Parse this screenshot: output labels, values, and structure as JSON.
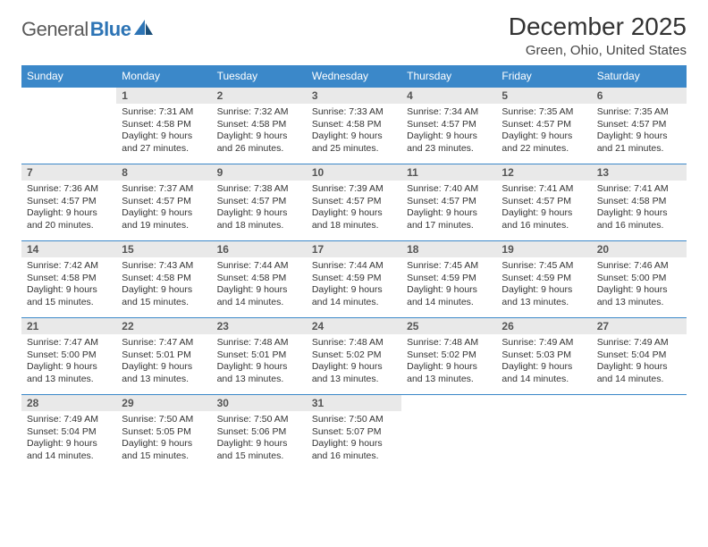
{
  "brand": {
    "part1": "General",
    "part2": "Blue"
  },
  "title": "December 2025",
  "location": "Green, Ohio, United States",
  "colors": {
    "header_bg": "#3b88c9",
    "header_text": "#ffffff",
    "daynum_bg": "#e9e9e9",
    "border": "#3b88c9",
    "logo_blue": "#2d74b5"
  },
  "weekdays": [
    "Sunday",
    "Monday",
    "Tuesday",
    "Wednesday",
    "Thursday",
    "Friday",
    "Saturday"
  ],
  "weeks": [
    [
      null,
      {
        "n": "1",
        "sr": "7:31 AM",
        "ss": "4:58 PM",
        "dl": "9 hours and 27 minutes."
      },
      {
        "n": "2",
        "sr": "7:32 AM",
        "ss": "4:58 PM",
        "dl": "9 hours and 26 minutes."
      },
      {
        "n": "3",
        "sr": "7:33 AM",
        "ss": "4:58 PM",
        "dl": "9 hours and 25 minutes."
      },
      {
        "n": "4",
        "sr": "7:34 AM",
        "ss": "4:57 PM",
        "dl": "9 hours and 23 minutes."
      },
      {
        "n": "5",
        "sr": "7:35 AM",
        "ss": "4:57 PM",
        "dl": "9 hours and 22 minutes."
      },
      {
        "n": "6",
        "sr": "7:35 AM",
        "ss": "4:57 PM",
        "dl": "9 hours and 21 minutes."
      }
    ],
    [
      {
        "n": "7",
        "sr": "7:36 AM",
        "ss": "4:57 PM",
        "dl": "9 hours and 20 minutes."
      },
      {
        "n": "8",
        "sr": "7:37 AM",
        "ss": "4:57 PM",
        "dl": "9 hours and 19 minutes."
      },
      {
        "n": "9",
        "sr": "7:38 AM",
        "ss": "4:57 PM",
        "dl": "9 hours and 18 minutes."
      },
      {
        "n": "10",
        "sr": "7:39 AM",
        "ss": "4:57 PM",
        "dl": "9 hours and 18 minutes."
      },
      {
        "n": "11",
        "sr": "7:40 AM",
        "ss": "4:57 PM",
        "dl": "9 hours and 17 minutes."
      },
      {
        "n": "12",
        "sr": "7:41 AM",
        "ss": "4:57 PM",
        "dl": "9 hours and 16 minutes."
      },
      {
        "n": "13",
        "sr": "7:41 AM",
        "ss": "4:58 PM",
        "dl": "9 hours and 16 minutes."
      }
    ],
    [
      {
        "n": "14",
        "sr": "7:42 AM",
        "ss": "4:58 PM",
        "dl": "9 hours and 15 minutes."
      },
      {
        "n": "15",
        "sr": "7:43 AM",
        "ss": "4:58 PM",
        "dl": "9 hours and 15 minutes."
      },
      {
        "n": "16",
        "sr": "7:44 AM",
        "ss": "4:58 PM",
        "dl": "9 hours and 14 minutes."
      },
      {
        "n": "17",
        "sr": "7:44 AM",
        "ss": "4:59 PM",
        "dl": "9 hours and 14 minutes."
      },
      {
        "n": "18",
        "sr": "7:45 AM",
        "ss": "4:59 PM",
        "dl": "9 hours and 14 minutes."
      },
      {
        "n": "19",
        "sr": "7:45 AM",
        "ss": "4:59 PM",
        "dl": "9 hours and 13 minutes."
      },
      {
        "n": "20",
        "sr": "7:46 AM",
        "ss": "5:00 PM",
        "dl": "9 hours and 13 minutes."
      }
    ],
    [
      {
        "n": "21",
        "sr": "7:47 AM",
        "ss": "5:00 PM",
        "dl": "9 hours and 13 minutes."
      },
      {
        "n": "22",
        "sr": "7:47 AM",
        "ss": "5:01 PM",
        "dl": "9 hours and 13 minutes."
      },
      {
        "n": "23",
        "sr": "7:48 AM",
        "ss": "5:01 PM",
        "dl": "9 hours and 13 minutes."
      },
      {
        "n": "24",
        "sr": "7:48 AM",
        "ss": "5:02 PM",
        "dl": "9 hours and 13 minutes."
      },
      {
        "n": "25",
        "sr": "7:48 AM",
        "ss": "5:02 PM",
        "dl": "9 hours and 13 minutes."
      },
      {
        "n": "26",
        "sr": "7:49 AM",
        "ss": "5:03 PM",
        "dl": "9 hours and 14 minutes."
      },
      {
        "n": "27",
        "sr": "7:49 AM",
        "ss": "5:04 PM",
        "dl": "9 hours and 14 minutes."
      }
    ],
    [
      {
        "n": "28",
        "sr": "7:49 AM",
        "ss": "5:04 PM",
        "dl": "9 hours and 14 minutes."
      },
      {
        "n": "29",
        "sr": "7:50 AM",
        "ss": "5:05 PM",
        "dl": "9 hours and 15 minutes."
      },
      {
        "n": "30",
        "sr": "7:50 AM",
        "ss": "5:06 PM",
        "dl": "9 hours and 15 minutes."
      },
      {
        "n": "31",
        "sr": "7:50 AM",
        "ss": "5:07 PM",
        "dl": "9 hours and 16 minutes."
      },
      null,
      null,
      null
    ]
  ],
  "labels": {
    "sunrise": "Sunrise: ",
    "sunset": "Sunset: ",
    "daylight": "Daylight: "
  }
}
